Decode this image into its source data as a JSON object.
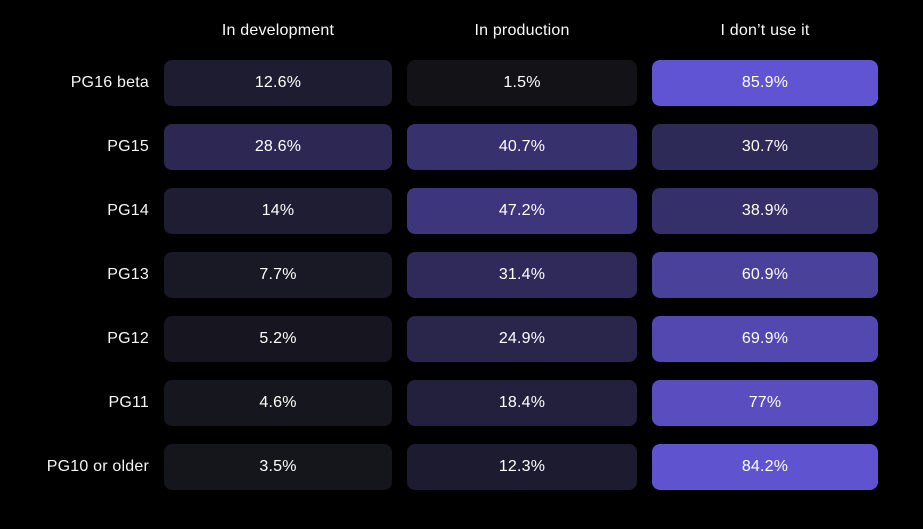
{
  "page": {
    "background": "#000000",
    "text_color": "#ffffff"
  },
  "chart_data": {
    "type": "heatmap",
    "title": "",
    "columns": [
      "In development",
      "In production",
      "I don’t use it"
    ],
    "rows": [
      "PG16 beta",
      "PG15",
      "PG14",
      "PG13",
      "PG12",
      "PG11",
      "PG10 or older"
    ],
    "values": [
      [
        12.6,
        1.5,
        85.9
      ],
      [
        28.6,
        40.7,
        30.7
      ],
      [
        14,
        47.2,
        38.9
      ],
      [
        7.7,
        31.4,
        60.9
      ],
      [
        5.2,
        24.9,
        69.9
      ],
      [
        4.6,
        18.4,
        77
      ],
      [
        3.5,
        12.3,
        84.2
      ]
    ],
    "cell_labels": [
      [
        "12.6%",
        "1.5%",
        "85.9%"
      ],
      [
        "28.6%",
        "40.7%",
        "30.7%"
      ],
      [
        "14%",
        "47.2%",
        "38.9%"
      ],
      [
        "7.7%",
        "31.4%",
        "60.9%"
      ],
      [
        "5.2%",
        "24.9%",
        "69.9%"
      ],
      [
        "4.6%",
        "18.4%",
        "77%"
      ],
      [
        "3.5%",
        "12.3%",
        "84.2%"
      ]
    ],
    "color_scale": {
      "min_value": 0,
      "max_value": 100,
      "min_color": "#121214",
      "max_color": "#6e5ff2"
    },
    "legend": "none",
    "grid": "off"
  }
}
